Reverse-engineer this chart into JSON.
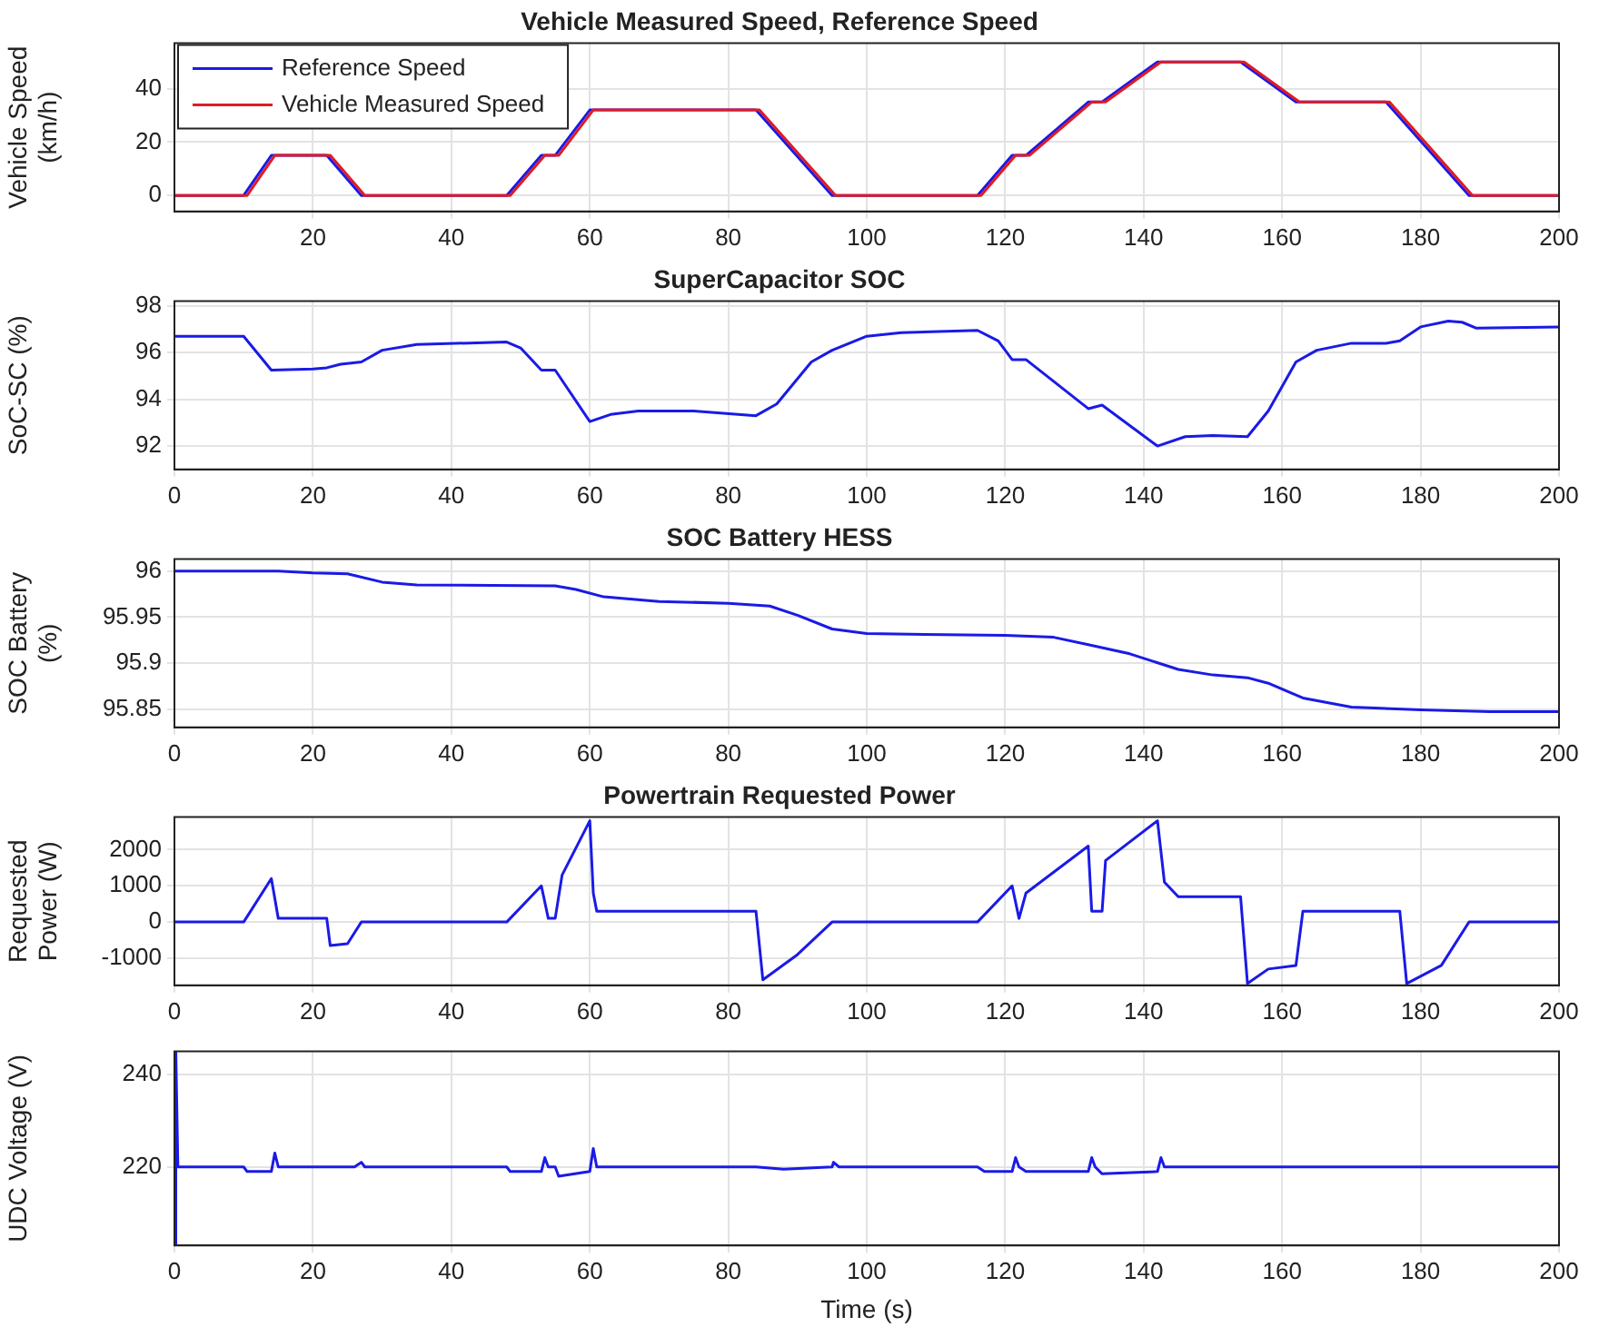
{
  "chart_data": [
    {
      "type": "line",
      "title": "Vehicle Measured Speed, Reference Speed",
      "ylabel": "Vehicle Speed (km/h)",
      "xlim": [
        0,
        200
      ],
      "xticks": [
        20,
        40,
        60,
        80,
        100,
        120,
        140,
        160,
        180,
        200
      ],
      "ylim": [
        -6,
        57
      ],
      "yticks": [
        0,
        20,
        40
      ],
      "grid": true,
      "legend": "top left",
      "x": [
        0,
        10,
        14,
        22,
        27,
        48,
        53,
        55,
        60,
        84,
        95,
        116,
        121,
        123,
        132,
        134,
        142,
        154,
        162,
        175,
        187,
        200
      ],
      "series": [
        {
          "name": "Reference Speed",
          "color": "#1a1ae6",
          "values": [
            0,
            0,
            15,
            15,
            0,
            0,
            15,
            15,
            32,
            32,
            0,
            0,
            15,
            15,
            35,
            35,
            50,
            50,
            35,
            35,
            0,
            0
          ]
        },
        {
          "name": "Vehicle Measured Speed",
          "color": "#e01b24",
          "x": [
            0,
            10.5,
            14.5,
            22.5,
            27.5,
            48.5,
            53.5,
            55.5,
            60.5,
            84.5,
            95.5,
            116.5,
            121.5,
            123.5,
            132.5,
            134.5,
            142.5,
            154.5,
            162.5,
            175.5,
            187.5,
            200
          ],
          "values": [
            0,
            0,
            15,
            15,
            0,
            0,
            15,
            15,
            32,
            32,
            0,
            0,
            15,
            15,
            35,
            35,
            50,
            50,
            35,
            35,
            0,
            0
          ]
        }
      ]
    },
    {
      "type": "line",
      "title": "SuperCapacitor SOC",
      "ylabel": "SoC-SC (%)",
      "xlim": [
        0,
        200
      ],
      "xticks": [
        0,
        20,
        40,
        60,
        80,
        100,
        120,
        140,
        160,
        180,
        200
      ],
      "ylim": [
        91,
        98.2
      ],
      "yticks": [
        92,
        94,
        96,
        98
      ],
      "grid": true,
      "x": [
        0,
        10,
        14,
        20,
        22,
        24,
        27,
        30,
        35,
        48,
        50,
        53,
        55,
        60,
        63,
        67,
        75,
        84,
        87,
        92,
        95,
        100,
        105,
        116,
        119,
        121,
        123,
        132,
        134,
        142,
        146,
        150,
        155,
        158,
        162,
        165,
        170,
        175,
        177,
        180,
        184,
        186,
        188,
        200
      ],
      "series": [
        {
          "color": "#1a1ae6",
          "values": [
            96.7,
            96.7,
            95.25,
            95.3,
            95.35,
            95.5,
            95.6,
            96.1,
            96.35,
            96.45,
            96.2,
            95.25,
            95.25,
            93.05,
            93.35,
            93.5,
            93.5,
            93.3,
            93.8,
            95.6,
            96.1,
            96.7,
            96.85,
            96.95,
            96.5,
            95.7,
            95.7,
            93.6,
            93.75,
            92.0,
            92.4,
            92.45,
            92.4,
            93.5,
            95.6,
            96.1,
            96.4,
            96.4,
            96.5,
            97.1,
            97.35,
            97.3,
            97.05,
            97.1
          ]
        }
      ]
    },
    {
      "type": "line",
      "title": "SOC Battery HESS",
      "ylabel": "SOC Battery (%)",
      "xlim": [
        0,
        200
      ],
      "xticks": [
        0,
        20,
        40,
        60,
        80,
        100,
        120,
        140,
        160,
        180,
        200
      ],
      "ylim": [
        95.83,
        96.013
      ],
      "yticks": [
        95.85,
        95.9,
        95.95,
        96
      ],
      "grid": true,
      "x": [
        0,
        15,
        20,
        25,
        30,
        35,
        55,
        58,
        62,
        70,
        80,
        86,
        90,
        95,
        100,
        120,
        127,
        132,
        138,
        145,
        150,
        155,
        158,
        163,
        170,
        180,
        190,
        200
      ],
      "series": [
        {
          "color": "#1a1ae6",
          "values": [
            96,
            96,
            95.998,
            95.997,
            95.988,
            95.985,
            95.984,
            95.98,
            95.972,
            95.967,
            95.965,
            95.962,
            95.952,
            95.937,
            95.932,
            95.93,
            95.928,
            95.92,
            95.91,
            95.893,
            95.887,
            95.884,
            95.878,
            95.862,
            95.852,
            95.849,
            95.847,
            95.847
          ]
        }
      ]
    },
    {
      "type": "line",
      "title": "Powertrain Requested Power",
      "ylabel": "Requested Power (W)",
      "xlim": [
        0,
        200
      ],
      "xticks": [
        0,
        20,
        40,
        60,
        80,
        100,
        120,
        140,
        160,
        180,
        200
      ],
      "ylim": [
        -1750,
        2900
      ],
      "yticks": [
        -1000,
        0,
        1000,
        2000
      ],
      "grid": true,
      "x": [
        0,
        10,
        14,
        15,
        22,
        22.5,
        25,
        27,
        48,
        53,
        54,
        55,
        56,
        60,
        60.5,
        61,
        84,
        85,
        90,
        95,
        116,
        121,
        122,
        123,
        132,
        132.5,
        134,
        134.5,
        142,
        143,
        145,
        154,
        155,
        158,
        162,
        163,
        177,
        178,
        183,
        187,
        200
      ],
      "series": [
        {
          "color": "#1a1ae6",
          "values": [
            0,
            0,
            1200,
            100,
            100,
            -650,
            -600,
            0,
            0,
            1000,
            100,
            100,
            1300,
            2800,
            800,
            300,
            300,
            -1600,
            -900,
            0,
            0,
            1000,
            100,
            800,
            2100,
            300,
            300,
            1700,
            2800,
            1100,
            700,
            700,
            -1700,
            -1300,
            -1200,
            300,
            300,
            -1700,
            -1200,
            0,
            0
          ]
        }
      ]
    },
    {
      "type": "line",
      "xlabel": "Time (s)",
      "ylabel": "UDC Voltage (V)",
      "xlim": [
        0,
        200
      ],
      "xticks": [
        0,
        20,
        40,
        60,
        80,
        100,
        120,
        140,
        160,
        180,
        200
      ],
      "ylim": [
        203,
        245
      ],
      "yticks": [
        220,
        240
      ],
      "grid": true,
      "x": [
        0,
        0.2,
        0.5,
        10,
        10.5,
        14,
        14.5,
        15,
        26,
        27,
        27.5,
        48,
        48.5,
        53,
        53.5,
        54,
        55,
        55.5,
        60,
        60.5,
        61,
        84,
        88,
        95,
        95.2,
        96,
        116,
        117,
        121,
        121.5,
        122,
        123,
        132,
        132.5,
        133,
        134,
        142,
        142.5,
        143,
        200
      ],
      "series": [
        {
          "color": "#1a1ae6",
          "values": [
            203,
            245,
            220,
            220,
            219,
            219,
            223,
            220,
            220,
            221,
            220,
            220,
            219,
            219,
            222,
            220,
            220,
            218,
            219,
            224,
            220,
            220,
            219.5,
            220,
            221,
            220,
            220,
            219,
            219,
            222,
            220,
            219,
            219,
            222,
            220,
            218.5,
            219,
            222,
            220,
            220
          ]
        }
      ]
    }
  ]
}
